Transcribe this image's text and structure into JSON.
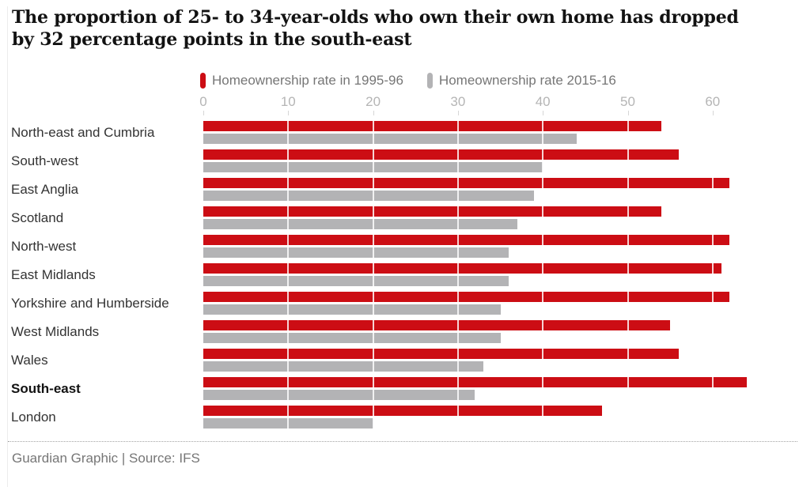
{
  "title_lines": [
    "The proportion of 25- to 34-year-olds who own their own home has dropped",
    "by 32 percentage points in the south-east"
  ],
  "legend": [
    {
      "label": "Homeownership rate in 1995-96",
      "color": "#cc0d14"
    },
    {
      "label": "Homeownership rate 2015-16",
      "color": "#b3b3b5"
    }
  ],
  "footer": "Guardian Graphic | Source: IFS",
  "colors": {
    "bar_1995": "#cc0d14",
    "bar_2015": "#b3b3b5",
    "axis_text": "#b5b5b5",
    "label_text": "#333333",
    "title_text": "#121212"
  },
  "chart_data": {
    "type": "bar",
    "orientation": "horizontal",
    "title": "The proportion of 25- to 34-year-olds who own their own home has dropped by 32 percentage points in the south-east",
    "categories": [
      "North-east and Cumbria",
      "South-west",
      "East Anglia",
      "Scotland",
      "North-west",
      "East Midlands",
      "Yorkshire and Humberside",
      "West Midlands",
      "Wales",
      "South-east",
      "London"
    ],
    "series": [
      {
        "name": "Homeownership rate in 1995-96",
        "color": "#cc0d14",
        "values": [
          54,
          56,
          62,
          54,
          62,
          61,
          62,
          55,
          56,
          64,
          47
        ]
      },
      {
        "name": "Homeownership rate 2015-16",
        "color": "#b3b3b5",
        "values": [
          44,
          40,
          39,
          37,
          36,
          36,
          35,
          35,
          33,
          32,
          20
        ]
      }
    ],
    "highlighted_category": "South-east",
    "x_ticks": [
      0,
      10,
      20,
      30,
      40,
      50,
      60
    ],
    "xlim": [
      0,
      66.5
    ],
    "xlabel": "",
    "ylabel": "",
    "grid": "white vertical lines over bars at each tick",
    "legend_position": "top",
    "source": "Guardian Graphic | Source: IFS"
  }
}
